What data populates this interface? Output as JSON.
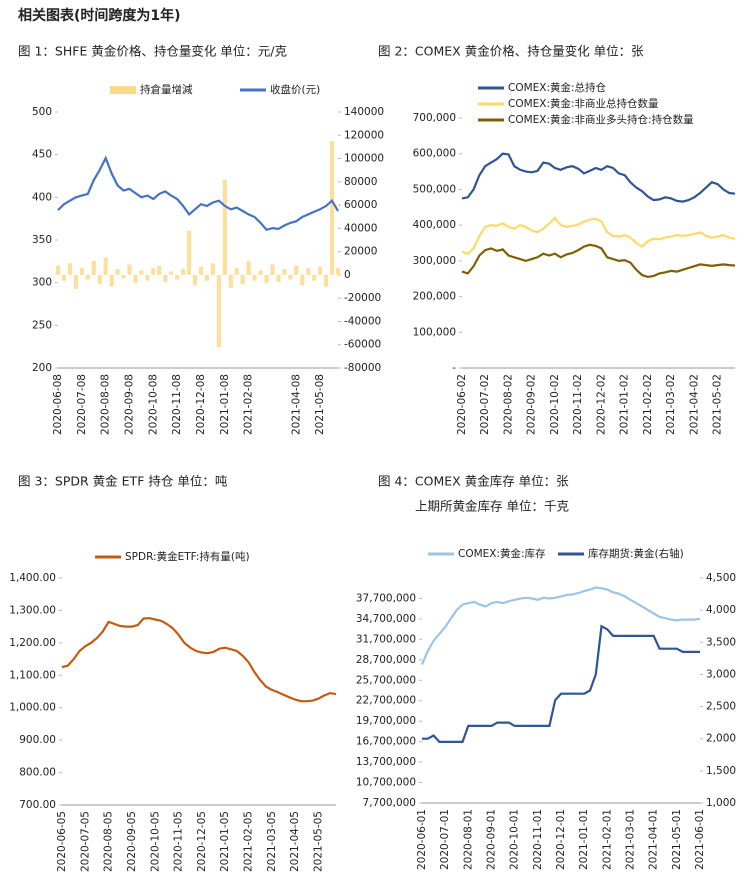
{
  "title": "相关图表(时间跨度为1年)",
  "chart_data": [
    {
      "type": "combo",
      "title": "图 1：SHFE 黄金价格、持仓量变化   单位：元/克",
      "categories": [
        "2020-06-08",
        null,
        null,
        null,
        "2020-07-08",
        null,
        null,
        null,
        "2020-08-08",
        null,
        null,
        null,
        "2020-09-08",
        null,
        null,
        null,
        "2020-10-08",
        null,
        null,
        null,
        "2020-11-08",
        null,
        null,
        null,
        "2020-12-08",
        null,
        null,
        null,
        "2021-01-08",
        null,
        null,
        null,
        "2021-02-08",
        null,
        null,
        null,
        null,
        null,
        null,
        null,
        "2021-04-08",
        null,
        null,
        null,
        "2021-05-08",
        null,
        null,
        null
      ],
      "ylim": [
        200,
        500
      ],
      "yticks": [
        200,
        250,
        300,
        350,
        400,
        450,
        500
      ],
      "y2lim": [
        -80000,
        140000
      ],
      "y2ticks": [
        -80000,
        -60000,
        -40000,
        -20000,
        0,
        20000,
        40000,
        60000,
        80000,
        100000,
        120000,
        140000
      ],
      "series": [
        {
          "name": "持倉量增減",
          "type": "bar",
          "axis": "y2",
          "color": "#fbd98a",
          "values": [
            8000,
            -5000,
            10000,
            -12000,
            6000,
            -4000,
            12000,
            -8000,
            15000,
            -10000,
            5000,
            -3000,
            9000,
            -7000,
            4000,
            -5000,
            6000,
            8000,
            -6000,
            3000,
            -4000,
            5000,
            38000,
            -9000,
            7000,
            -5000,
            10000,
            -62000,
            82000,
            -11000,
            6000,
            -8000,
            12000,
            -5000,
            4000,
            -7000,
            9000,
            -6000,
            5000,
            -4000,
            8000,
            -9000,
            6000,
            -5000,
            7000,
            -10000,
            115000,
            6000
          ]
        },
        {
          "name": "收盘价(元)",
          "type": "line",
          "color": "#4472c4",
          "values": [
            385,
            392,
            396,
            400,
            402,
            404,
            420,
            432,
            446,
            428,
            414,
            408,
            410,
            405,
            400,
            402,
            398,
            404,
            407,
            402,
            398,
            390,
            380,
            386,
            392,
            390,
            394,
            396,
            390,
            386,
            388,
            384,
            380,
            377,
            370,
            362,
            364,
            363,
            367,
            370,
            372,
            377,
            380,
            383,
            386,
            390,
            396,
            384
          ]
        }
      ]
    },
    {
      "type": "line",
      "title": "图 2：COMEX 黄金价格、持仓量变化   单位：张",
      "categories": [
        "2020-06-02",
        null,
        null,
        null,
        "2020-07-02",
        null,
        null,
        null,
        "2020-08-02",
        null,
        null,
        null,
        "2020-09-02",
        null,
        null,
        null,
        "2020-10-02",
        null,
        null,
        null,
        "2020-11-02",
        null,
        null,
        null,
        "2020-12-02",
        null,
        null,
        null,
        "2021-01-02",
        null,
        null,
        null,
        "2021-02-02",
        null,
        null,
        null,
        "2021-03-02",
        null,
        null,
        null,
        "2021-04-02",
        null,
        null,
        null,
        "2021-05-02",
        null,
        null,
        null
      ],
      "ylim": [
        0,
        700000
      ],
      "yticks": [
        {
          "value": 0,
          "label": "-"
        },
        {
          "value": 100000,
          "label": "100,000"
        },
        {
          "value": 200000,
          "label": "200,000"
        },
        {
          "value": 300000,
          "label": "300,000"
        },
        {
          "value": 400000,
          "label": "400,000"
        },
        {
          "value": 500000,
          "label": "500,000"
        },
        {
          "value": 600000,
          "label": "600,000"
        },
        {
          "value": 700000,
          "label": "700,000"
        }
      ],
      "series": [
        {
          "name": "COMEX:黄金:总持仓",
          "color": "#2f5597",
          "values": [
            475000,
            478000,
            500000,
            540000,
            565000,
            575000,
            585000,
            600000,
            598000,
            565000,
            555000,
            550000,
            548000,
            552000,
            575000,
            572000,
            560000,
            555000,
            562000,
            565000,
            558000,
            545000,
            552000,
            560000,
            555000,
            565000,
            560000,
            545000,
            540000,
            520000,
            505000,
            495000,
            480000,
            470000,
            472000,
            478000,
            475000,
            468000,
            466000,
            470000,
            478000,
            490000,
            505000,
            520000,
            515000,
            500000,
            490000,
            488000
          ]
        },
        {
          "name": "COMEX:黄金:非商业总持仓数量",
          "color": "#ffd966",
          "values": [
            325000,
            320000,
            335000,
            370000,
            395000,
            400000,
            398000,
            405000,
            395000,
            390000,
            400000,
            395000,
            385000,
            380000,
            390000,
            405000,
            420000,
            400000,
            395000,
            398000,
            402000,
            410000,
            415000,
            418000,
            410000,
            380000,
            370000,
            368000,
            372000,
            365000,
            350000,
            340000,
            355000,
            362000,
            360000,
            365000,
            368000,
            372000,
            370000,
            372000,
            375000,
            380000,
            370000,
            365000,
            368000,
            372000,
            365000,
            362000
          ]
        },
        {
          "name": "COMEX:黄金:非商业多头持仓:持仓数量",
          "color": "#7f6000",
          "values": [
            270000,
            265000,
            285000,
            315000,
            330000,
            335000,
            328000,
            332000,
            315000,
            310000,
            305000,
            300000,
            305000,
            310000,
            320000,
            315000,
            320000,
            310000,
            318000,
            322000,
            330000,
            340000,
            345000,
            342000,
            335000,
            310000,
            305000,
            300000,
            302000,
            295000,
            275000,
            260000,
            255000,
            258000,
            265000,
            268000,
            272000,
            270000,
            275000,
            280000,
            285000,
            290000,
            288000,
            286000,
            288000,
            290000,
            288000,
            287000
          ]
        }
      ]
    },
    {
      "type": "line",
      "title": "图 3：SPDR 黄金 ETF 持仓   单位：吨",
      "categories": [
        "2020-06-05",
        null,
        null,
        null,
        "2020-07-05",
        null,
        null,
        null,
        "2020-08-05",
        null,
        null,
        null,
        "2020-09-05",
        null,
        null,
        null,
        "2020-10-05",
        null,
        null,
        null,
        "2020-11-05",
        null,
        null,
        null,
        "2020-12-05",
        null,
        null,
        null,
        "2021-01-05",
        null,
        null,
        null,
        "2021-02-05",
        null,
        null,
        null,
        "2021-03-05",
        null,
        null,
        null,
        "2021-04-05",
        null,
        null,
        null,
        "2021-05-05",
        null,
        null,
        null
      ],
      "ylim": [
        700,
        1400
      ],
      "yticks": [
        {
          "value": 700,
          "label": "700.00"
        },
        {
          "value": 800,
          "label": "800.00"
        },
        {
          "value": 900,
          "label": "900.00"
        },
        {
          "value": 1000,
          "label": "1,000.00"
        },
        {
          "value": 1100,
          "label": "1,100.00"
        },
        {
          "value": 1200,
          "label": "1,200.00"
        },
        {
          "value": 1300,
          "label": "1,300.00"
        },
        {
          "value": 1400,
          "label": "1,400.00"
        }
      ],
      "series": [
        {
          "name": "SPDR:黄金ETF:持有量(吨)",
          "color": "#c55a11",
          "values": [
            1125,
            1130,
            1150,
            1175,
            1190,
            1200,
            1215,
            1235,
            1265,
            1258,
            1252,
            1250,
            1250,
            1255,
            1275,
            1276,
            1272,
            1268,
            1258,
            1245,
            1225,
            1200,
            1185,
            1175,
            1170,
            1168,
            1172,
            1182,
            1185,
            1180,
            1175,
            1160,
            1140,
            1110,
            1085,
            1065,
            1055,
            1048,
            1040,
            1032,
            1025,
            1020,
            1020,
            1022,
            1028,
            1038,
            1045,
            1042
          ]
        }
      ]
    },
    {
      "type": "line",
      "title": "图 4：COMEX 黄金库存   单位：张",
      "subtitle": "上期所黄金库存   单位：千克",
      "categories": [
        "2020-06-01",
        null,
        null,
        null,
        "2020-07-01",
        null,
        null,
        null,
        "2020-08-01",
        null,
        null,
        null,
        "2020-09-01",
        null,
        null,
        null,
        "2020-10-01",
        null,
        null,
        null,
        "2020-11-01",
        null,
        null,
        null,
        "2020-12-01",
        null,
        null,
        null,
        "2021-01-01",
        null,
        null,
        null,
        "2021-02-01",
        null,
        null,
        null,
        "2021-03-01",
        null,
        null,
        null,
        "2021-04-01",
        null,
        null,
        null,
        "2021-05-01",
        null,
        null,
        null,
        "2021-06-01"
      ],
      "ylim": [
        7700000,
        40700000
      ],
      "yticks": [
        {
          "value": 7700000,
          "label": "7,700,000"
        },
        {
          "value": 10700000,
          "label": "10,700,000"
        },
        {
          "value": 13700000,
          "label": "13,700,000"
        },
        {
          "value": 16700000,
          "label": "16,700,000"
        },
        {
          "value": 19700000,
          "label": "19,700,000"
        },
        {
          "value": 22700000,
          "label": "22,700,000"
        },
        {
          "value": 25700000,
          "label": "25,700,000"
        },
        {
          "value": 28700000,
          "label": "28,700,000"
        },
        {
          "value": 31700000,
          "label": "31,700,000"
        },
        {
          "value": 34700000,
          "label": "34,700,000"
        },
        {
          "value": 37700000,
          "label": "37,700,000"
        }
      ],
      "y2lim": [
        1000,
        4500
      ],
      "y2ticks": [
        {
          "value": 1000,
          "label": "1,000"
        },
        {
          "value": 1500,
          "label": "1,500"
        },
        {
          "value": 2000,
          "label": "2,000"
        },
        {
          "value": 2500,
          "label": "2,500"
        },
        {
          "value": 3000,
          "label": "3,000"
        },
        {
          "value": 3500,
          "label": "3,500"
        },
        {
          "value": 4000,
          "label": "4,000"
        },
        {
          "value": 4500,
          "label": "4,500"
        }
      ],
      "series": [
        {
          "name": "COMEX:黄金:库存",
          "color": "#9dc3e6",
          "values": [
            28000000,
            30000000,
            31500000,
            32500000,
            33500000,
            34800000,
            36000000,
            36800000,
            37000000,
            37200000,
            36800000,
            36500000,
            37000000,
            37200000,
            37000000,
            37300000,
            37500000,
            37700000,
            37800000,
            37700000,
            37500000,
            37800000,
            37700000,
            37800000,
            38000000,
            38200000,
            38300000,
            38500000,
            38800000,
            39000000,
            39300000,
            39200000,
            39000000,
            38600000,
            38400000,
            38000000,
            37500000,
            37000000,
            36500000,
            36000000,
            35500000,
            35000000,
            34800000,
            34600000,
            34500000,
            34600000,
            34600000,
            34600000,
            34700000
          ]
        },
        {
          "name": "库存期货:黄金(右轴)",
          "axis": "y2",
          "color": "#2f5597",
          "values": [
            2000,
            2000,
            2050,
            1950,
            1950,
            1950,
            1950,
            1950,
            2200,
            2200,
            2200,
            2200,
            2200,
            2250,
            2250,
            2250,
            2200,
            2200,
            2200,
            2200,
            2200,
            2200,
            2200,
            2600,
            2700,
            2700,
            2700,
            2700,
            2700,
            2750,
            3000,
            3750,
            3700,
            3600,
            3600,
            3600,
            3600,
            3600,
            3600,
            3600,
            3600,
            3400,
            3400,
            3400,
            3400,
            3350,
            3350,
            3350,
            3350
          ]
        }
      ]
    }
  ]
}
